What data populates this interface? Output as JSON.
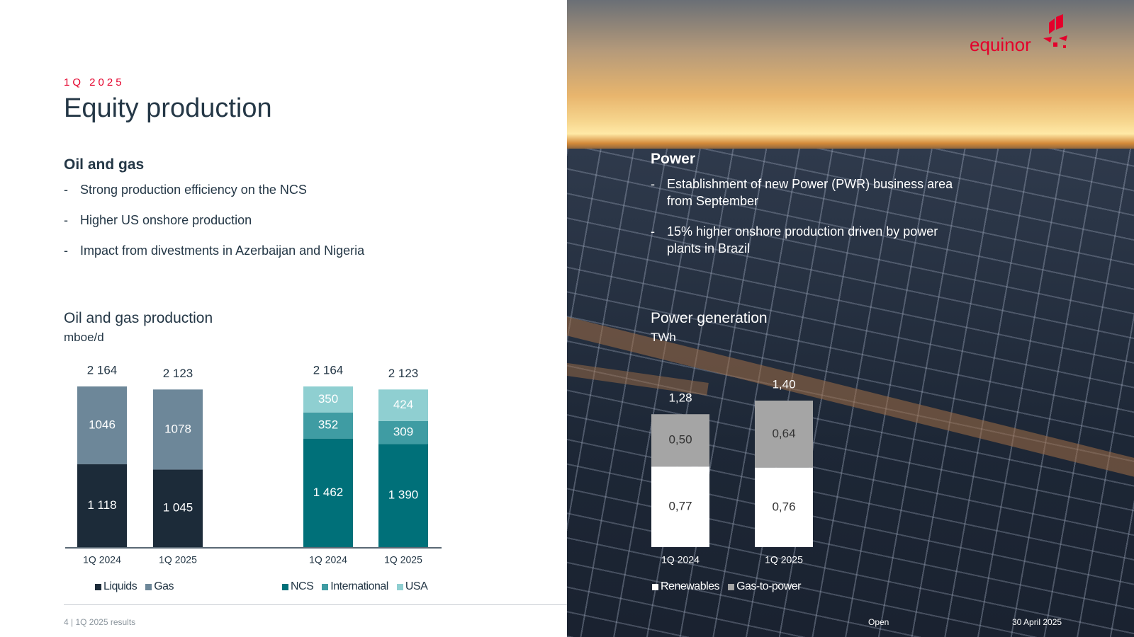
{
  "header": {
    "kicker": "1Q 2025",
    "title": "Equity production"
  },
  "oil_gas": {
    "heading": "Oil and gas",
    "bullets": [
      "Strong production efficiency on the NCS",
      "Higher US onshore production",
      "Impact from divestments in Azerbaijan and Nigeria"
    ]
  },
  "power": {
    "heading": "Power",
    "bullets": [
      "Establishment of new Power (PWR) business area from September",
      "15% higher onshore production driven by power plants in Brazil"
    ]
  },
  "oil_chart_title": "Oil and gas production",
  "oil_chart_unit": "mboe/d",
  "power_chart_title": "Power generation",
  "power_chart_unit": "TWh",
  "dash": "-",
  "legend_oil_a": [
    "Liquids",
    "Gas"
  ],
  "legend_oil_b": [
    "NCS",
    "International",
    "USA"
  ],
  "legend_power": [
    "Renewables",
    "Gas-to-power"
  ],
  "footer": {
    "page": "4 |  1Q 2025 results",
    "classification": "Open",
    "date": "30 April 2025"
  },
  "logo_text": "equinor",
  "colors": {
    "liquids": "#1c2b39",
    "gas": "#6d8799",
    "ncs": "#007079",
    "international": "#3f9ca3",
    "usa": "#8fcfd1",
    "renewables": "#ffffff",
    "gas_to_power": "#a5a5a5",
    "accent": "#e4002b"
  },
  "chart_data": [
    {
      "type": "bar",
      "stacked": true,
      "title": "Oil and gas production",
      "ylabel": "mboe/d",
      "categories": [
        "1Q 2024",
        "1Q 2025"
      ],
      "totals": [
        2164,
        2123
      ],
      "total_labels": [
        "2 164",
        "2 123"
      ],
      "series": [
        {
          "name": "Liquids",
          "values": [
            1118,
            1045
          ],
          "labels": [
            "1 118",
            "1 045"
          ]
        },
        {
          "name": "Gas",
          "values": [
            1046,
            1078
          ],
          "labels": [
            "1046",
            "1078"
          ]
        }
      ],
      "ylim": [
        0,
        2164
      ]
    },
    {
      "type": "bar",
      "stacked": true,
      "categories": [
        "1Q 2024",
        "1Q 2025"
      ],
      "totals": [
        2164,
        2123
      ],
      "total_labels": [
        "2 164",
        "2 123"
      ],
      "series": [
        {
          "name": "NCS",
          "values": [
            1462,
            1390
          ],
          "labels": [
            "1 462",
            "1 390"
          ]
        },
        {
          "name": "International",
          "values": [
            352,
            309
          ],
          "labels": [
            "352",
            "309"
          ]
        },
        {
          "name": "USA",
          "values": [
            350,
            424
          ],
          "labels": [
            "350",
            "424"
          ]
        }
      ],
      "ylim": [
        0,
        2164
      ]
    },
    {
      "type": "bar",
      "stacked": true,
      "title": "Power generation",
      "ylabel": "TWh",
      "categories": [
        "1Q 2024",
        "1Q 2025"
      ],
      "totals": [
        1.28,
        1.4
      ],
      "total_labels": [
        "1,28",
        "1,40"
      ],
      "series": [
        {
          "name": "Renewables",
          "values": [
            0.77,
            0.76
          ],
          "labels": [
            "0,77",
            "0,76"
          ]
        },
        {
          "name": "Gas-to-power",
          "values": [
            0.5,
            0.64
          ],
          "labels": [
            "0,50",
            "0,64"
          ]
        }
      ],
      "ylim": [
        0,
        1.4
      ]
    }
  ]
}
